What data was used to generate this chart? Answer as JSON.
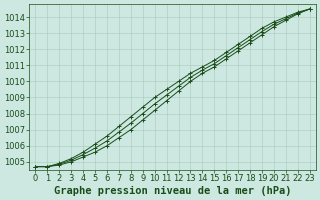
{
  "title": "Graphe pression niveau de la mer (hPa)",
  "xlabel": "Graphe pression niveau de la mer (hPa)",
  "background_color": "#cce8e0",
  "grid_color": "#aac8be",
  "line_color": "#1a4d1a",
  "xlim": [
    -0.5,
    23.5
  ],
  "ylim": [
    1004.5,
    1014.8
  ],
  "yticks": [
    1005,
    1006,
    1007,
    1008,
    1009,
    1010,
    1011,
    1012,
    1013,
    1014
  ],
  "xticks": [
    0,
    1,
    2,
    3,
    4,
    5,
    6,
    7,
    8,
    9,
    10,
    11,
    12,
    13,
    14,
    15,
    16,
    17,
    18,
    19,
    20,
    21,
    22,
    23
  ],
  "series": [
    [
      1004.7,
      1004.7,
      1004.8,
      1005.0,
      1005.3,
      1005.6,
      1006.0,
      1006.5,
      1007.0,
      1007.6,
      1008.2,
      1008.8,
      1009.4,
      1010.0,
      1010.5,
      1010.9,
      1011.4,
      1011.9,
      1012.4,
      1012.9,
      1013.4,
      1013.8,
      1014.2,
      1014.5
    ],
    [
      1004.7,
      1004.7,
      1004.9,
      1005.2,
      1005.6,
      1006.1,
      1006.6,
      1007.2,
      1007.8,
      1008.4,
      1009.0,
      1009.5,
      1010.0,
      1010.5,
      1010.9,
      1011.3,
      1011.8,
      1012.3,
      1012.8,
      1013.3,
      1013.7,
      1014.0,
      1014.3,
      1014.5
    ],
    [
      1004.7,
      1004.7,
      1004.85,
      1005.1,
      1005.45,
      1005.85,
      1006.3,
      1006.85,
      1007.4,
      1008.0,
      1008.6,
      1009.15,
      1009.7,
      1010.25,
      1010.7,
      1011.1,
      1011.6,
      1012.1,
      1012.6,
      1013.1,
      1013.55,
      1013.9,
      1014.25,
      1014.5
    ]
  ],
  "marker": "+",
  "markersize": 3.5,
  "linewidth": 0.7,
  "title_fontsize": 7.5,
  "tick_fontsize": 6.0
}
